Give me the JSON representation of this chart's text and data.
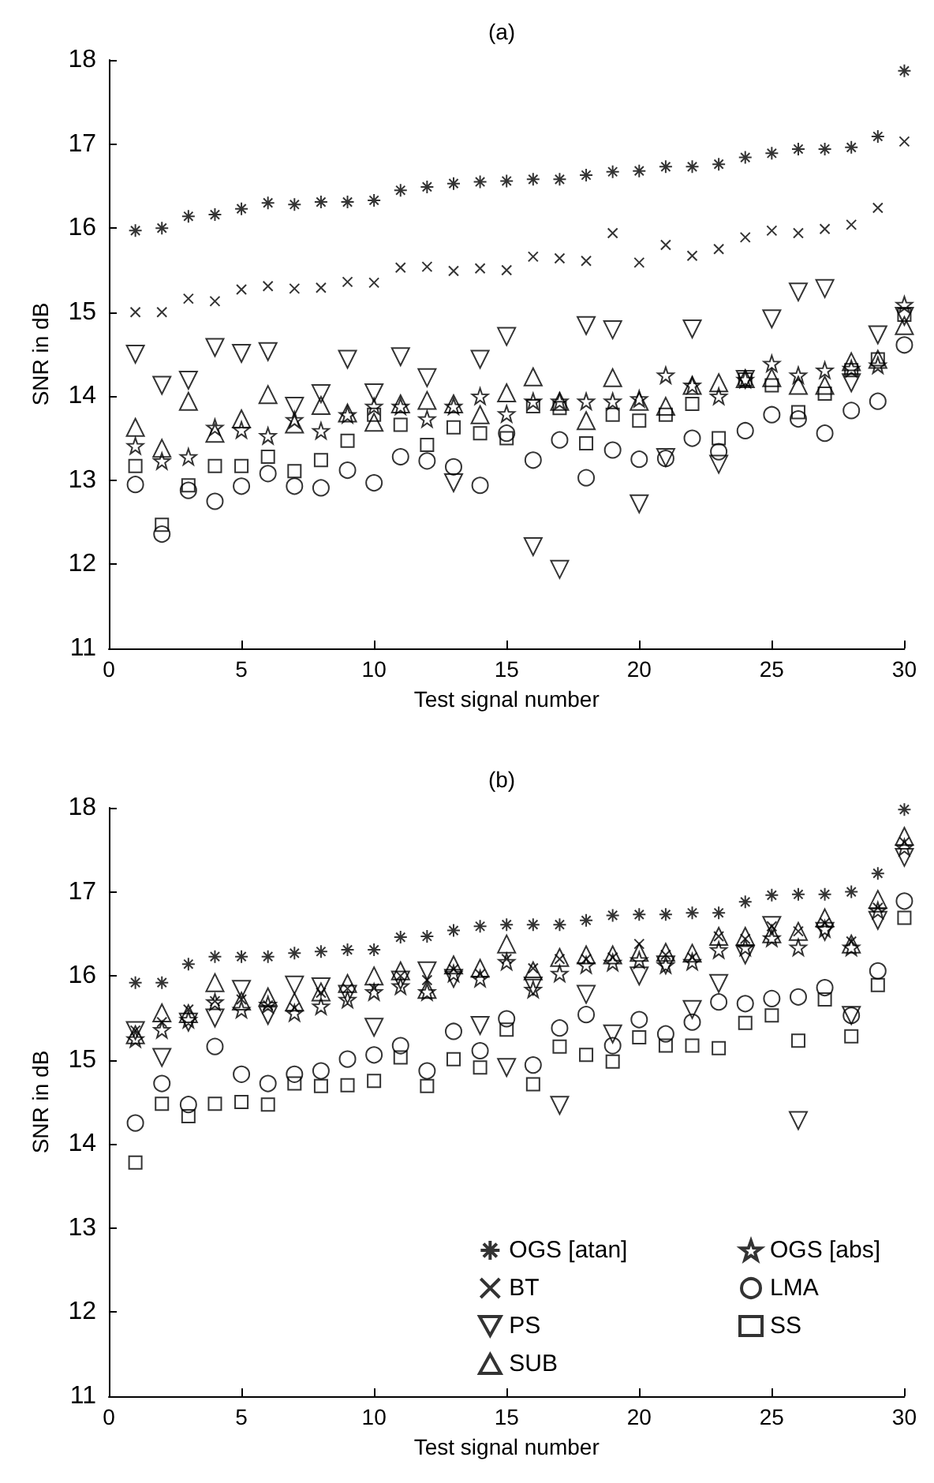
{
  "chart_data": [
    {
      "type": "scatter",
      "title": "(a)",
      "xlabel": "Test signal number",
      "ylabel": "SNR in dB",
      "x": [
        1,
        2,
        3,
        4,
        5,
        6,
        7,
        8,
        9,
        10,
        11,
        12,
        13,
        14,
        15,
        16,
        17,
        18,
        19,
        20,
        21,
        22,
        23,
        24,
        25,
        26,
        27,
        28,
        29,
        30
      ],
      "xlim": [
        0,
        30
      ],
      "xticks": [
        0,
        5,
        10,
        15,
        20,
        25,
        30
      ],
      "ylim": [
        11,
        18
      ],
      "yticks": [
        11,
        12,
        13,
        14,
        15,
        16,
        17,
        18
      ],
      "grid": false,
      "legend": false,
      "series": [
        {
          "marker": "cross",
          "color": "#000000",
          "values": [
            15.97,
            16.0,
            16.14,
            16.16,
            16.23,
            16.3,
            16.28,
            16.31,
            16.31,
            16.33,
            16.45,
            16.49,
            16.53,
            16.55,
            16.56,
            16.58,
            16.58,
            16.63,
            16.67,
            16.68,
            16.73,
            16.73,
            16.76,
            16.84,
            16.89,
            16.94,
            16.94,
            16.96,
            17.09,
            17.87
          ]
        },
        {
          "color": "#000000",
          "values": [
            15.0,
            15.0,
            15.16,
            15.13,
            15.27,
            15.31,
            15.28,
            15.29,
            15.36,
            15.35,
            15.53,
            15.54,
            15.49,
            15.52,
            15.5,
            15.66,
            15.64,
            15.61,
            15.94,
            15.59,
            15.8,
            15.67,
            15.75,
            15.89,
            15.97,
            15.94,
            15.99,
            16.04,
            16.24,
            17.03
          ]
        },
        {
          "marker": "triangle-down",
          "color": "#000000",
          "values": [
            14.5,
            14.13,
            14.19,
            14.58,
            14.51,
            14.53,
            13.88,
            14.03,
            14.44,
            14.04,
            14.47,
            14.22,
            12.97,
            14.44,
            14.71,
            12.21,
            11.94,
            14.84,
            14.79,
            12.72,
            13.27,
            14.8,
            13.19,
            14.2,
            14.92,
            15.24,
            15.28,
            14.16,
            14.73,
            14.95
          ]
        },
        {
          "marker": "triangle",
          "color": "#000000",
          "values": [
            13.63,
            13.38,
            13.94,
            13.56,
            13.73,
            14.02,
            13.67,
            13.89,
            13.8,
            13.69,
            13.91,
            13.95,
            13.91,
            13.78,
            14.04,
            14.23,
            13.94,
            13.71,
            14.22,
            13.94,
            13.88,
            14.13,
            14.16,
            14.21,
            14.22,
            14.13,
            14.13,
            14.41,
            14.44,
            14.84
          ]
        },
        {
          "marker": "star",
          "color": "#000000",
          "values": [
            13.41,
            13.23,
            13.28,
            13.63,
            13.6,
            13.53,
            13.72,
            13.59,
            13.78,
            13.88,
            13.88,
            13.73,
            13.88,
            14.0,
            13.79,
            13.94,
            13.94,
            13.94,
            13.94,
            13.97,
            14.25,
            14.13,
            14.0,
            14.2,
            14.39,
            14.25,
            14.31,
            14.33,
            14.37,
            15.09
          ]
        },
        {
          "marker": "circle",
          "color": "#000000",
          "values": [
            12.95,
            12.36,
            12.88,
            12.75,
            12.93,
            13.08,
            12.93,
            12.91,
            13.12,
            12.97,
            13.28,
            13.23,
            13.16,
            12.94,
            13.56,
            13.24,
            13.48,
            13.03,
            13.36,
            13.25,
            13.26,
            13.5,
            13.34,
            13.59,
            13.78,
            13.73,
            13.56,
            13.83,
            13.94,
            14.61
          ]
        },
        {
          "marker": "square",
          "color": "#000000",
          "values": [
            13.17,
            12.47,
            12.94,
            13.17,
            13.17,
            13.28,
            13.11,
            13.24,
            13.47,
            13.78,
            13.66,
            13.42,
            13.63,
            13.56,
            13.5,
            13.88,
            13.86,
            13.44,
            13.78,
            13.71,
            13.78,
            13.91,
            13.5,
            14.2,
            14.13,
            13.81,
            14.03,
            14.31,
            14.44,
            14.97
          ]
        }
      ]
    },
    {
      "type": "scatter",
      "title": "(b)",
      "xlabel": "Test signal number",
      "ylabel": "SNR in dB",
      "x": [
        1,
        2,
        3,
        4,
        5,
        6,
        7,
        8,
        9,
        10,
        11,
        12,
        13,
        14,
        15,
        16,
        17,
        18,
        19,
        20,
        21,
        22,
        23,
        24,
        25,
        26,
        27,
        28,
        29,
        30
      ],
      "xlim": [
        0,
        30
      ],
      "xticks": [
        0,
        5,
        10,
        15,
        20,
        25,
        30
      ],
      "ylim": [
        11,
        18
      ],
      "yticks": [
        11,
        12,
        13,
        14,
        15,
        16,
        17,
        18
      ],
      "grid": false,
      "legend": "bottom right",
      "series": [
        {
          "name": "OGS [atan]",
          "marker": "cross",
          "color": "#000000",
          "values": [
            15.92,
            15.92,
            16.14,
            16.23,
            16.23,
            16.23,
            16.27,
            16.29,
            16.31,
            16.31,
            16.46,
            16.47,
            16.54,
            16.59,
            16.61,
            16.61,
            16.61,
            16.66,
            16.72,
            16.73,
            16.73,
            16.75,
            16.75,
            16.88,
            16.96,
            16.97,
            16.97,
            17.0,
            17.22,
            17.98
          ]
        },
        {
          "name": "BT",
          "color": "#000000",
          "values": [
            15.35,
            15.45,
            15.6,
            15.7,
            15.72,
            15.65,
            15.62,
            15.8,
            15.85,
            15.85,
            16.0,
            15.95,
            16.08,
            16.02,
            16.2,
            16.09,
            16.2,
            16.2,
            16.22,
            16.38,
            16.25,
            16.22,
            16.47,
            16.44,
            16.59,
            16.53,
            16.63,
            16.41,
            16.81,
            17.59
          ]
        },
        {
          "name": "PS",
          "marker": "triangle-down",
          "color": "#000000",
          "values": [
            15.35,
            15.03,
            15.45,
            15.5,
            15.84,
            15.53,
            15.89,
            15.87,
            15.78,
            15.39,
            15.95,
            16.06,
            15.97,
            15.41,
            14.91,
            15.88,
            14.46,
            15.78,
            15.31,
            16.0,
            16.13,
            15.6,
            15.91,
            16.25,
            16.6,
            14.28,
            16.53,
            15.53,
            16.66,
            17.41
          ]
        },
        {
          "name": "SUB",
          "marker": "triangle",
          "color": "#000000",
          "values": [
            15.3,
            15.56,
            15.55,
            15.92,
            15.7,
            15.75,
            15.69,
            15.81,
            15.91,
            16.0,
            16.06,
            15.84,
            16.13,
            16.09,
            16.38,
            16.06,
            16.22,
            16.25,
            16.25,
            16.28,
            16.28,
            16.27,
            16.47,
            16.47,
            16.5,
            16.53,
            16.69,
            16.38,
            16.91,
            17.66
          ]
        },
        {
          "name": "OGS [abs]",
          "marker": "star",
          "color": "#000000",
          "values": [
            15.25,
            15.36,
            15.48,
            15.69,
            15.6,
            15.66,
            15.56,
            15.64,
            15.72,
            15.81,
            15.88,
            15.81,
            16.03,
            15.97,
            16.17,
            15.84,
            16.03,
            16.13,
            16.16,
            16.19,
            16.13,
            16.17,
            16.31,
            16.34,
            16.45,
            16.34,
            16.56,
            16.34,
            16.78,
            17.53
          ]
        },
        {
          "name": "LMA",
          "marker": "circle",
          "color": "#000000",
          "values": [
            14.25,
            14.72,
            14.47,
            15.16,
            14.83,
            14.72,
            14.83,
            14.87,
            15.01,
            15.06,
            15.17,
            14.87,
            15.34,
            15.11,
            15.49,
            14.94,
            15.38,
            15.54,
            15.17,
            15.48,
            15.31,
            15.45,
            15.69,
            15.67,
            15.73,
            15.75,
            15.86,
            15.53,
            16.06,
            16.89
          ]
        },
        {
          "name": "SS",
          "marker": "square",
          "color": "#000000",
          "values": [
            13.78,
            14.48,
            14.33,
            14.48,
            14.5,
            14.47,
            14.72,
            14.69,
            14.7,
            14.75,
            15.03,
            14.69,
            15.01,
            14.91,
            15.36,
            14.71,
            15.16,
            15.06,
            14.98,
            15.27,
            15.17,
            15.17,
            15.14,
            15.44,
            15.53,
            15.23,
            15.72,
            15.28,
            15.89,
            16.69
          ]
        }
      ]
    }
  ]
}
